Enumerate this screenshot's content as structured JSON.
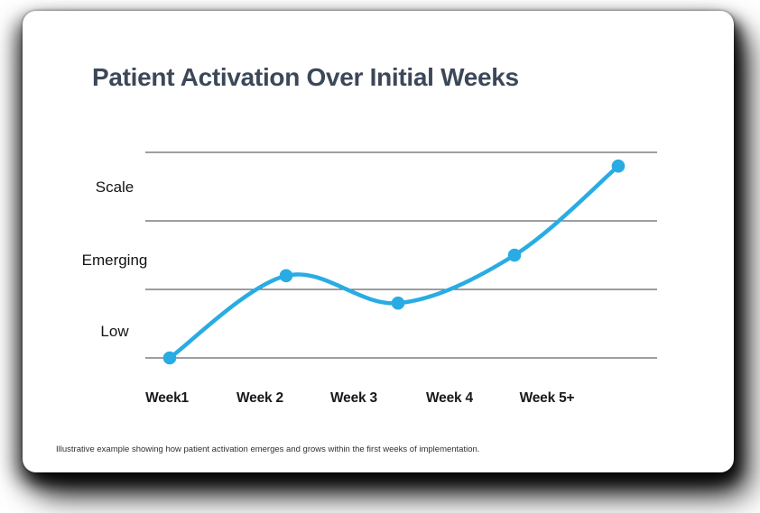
{
  "chart_data": {
    "type": "line",
    "title": "Patient Activation Over Initial Weeks",
    "categories": [
      "Week1",
      "Week 2",
      "Week 3",
      "Week 4",
      "Week 5+"
    ],
    "y_band_labels": [
      "Scale",
      "Emerging",
      "Low"
    ],
    "values": [
      0,
      1.2,
      0.8,
      1.5,
      2.8
    ],
    "ylim": [
      0,
      3
    ],
    "xlabel": "",
    "ylabel": "",
    "grid": "horizontal-only",
    "gridline_count": 4,
    "legend": "none",
    "line_color": "#29ace3",
    "point_color": "#29ace3",
    "gridline_color": "#5f646b",
    "title_color": "#3c4859"
  },
  "caption": "Illustrative example showing how patient activation emerges and grows within the first weeks of implementation."
}
